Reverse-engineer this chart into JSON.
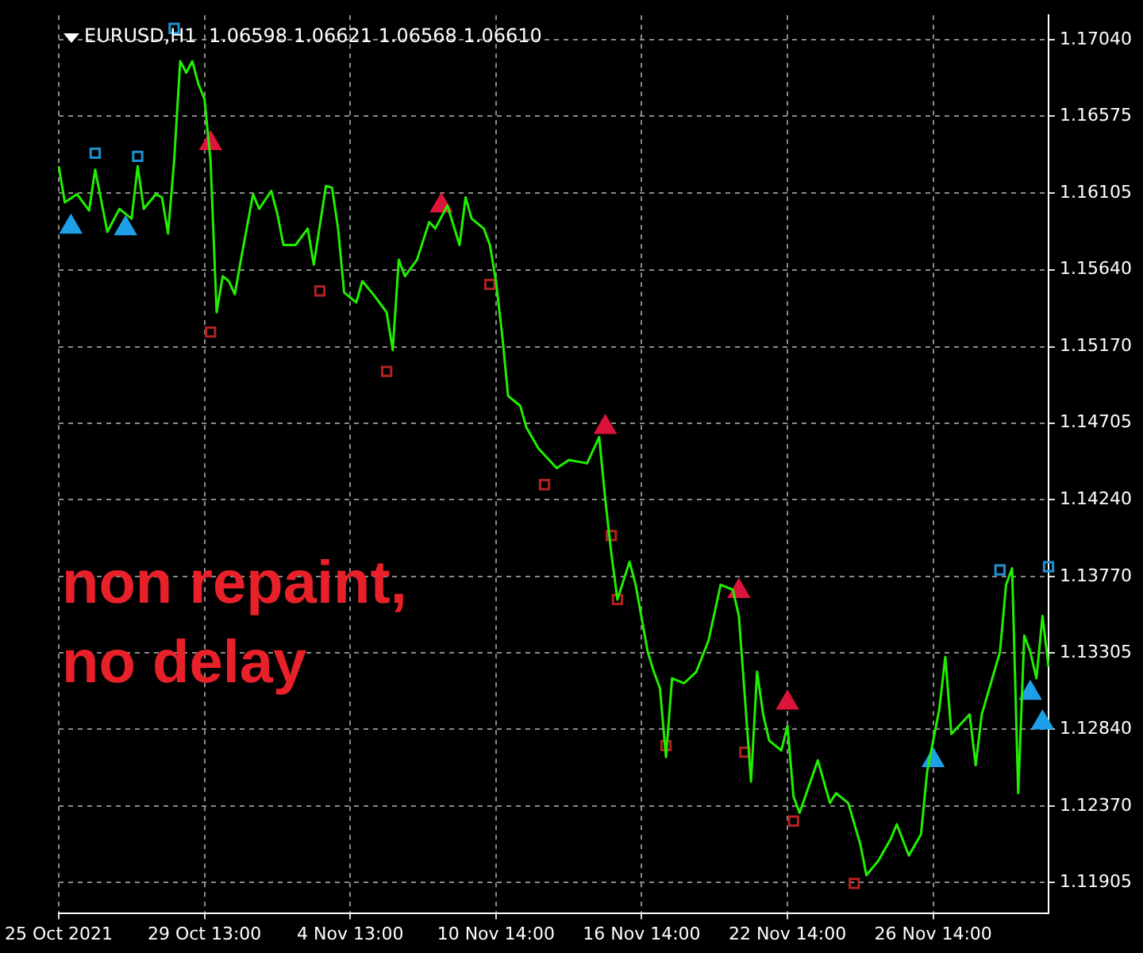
{
  "chart_data": {
    "type": "line",
    "title": "EURUSD,H1  1.06598 1.06621 1.06568 1.06610",
    "annotations": [
      "non repaint,",
      "no delay"
    ],
    "categories": [
      "25 Oct 2021",
      null,
      null,
      null,
      null,
      null,
      null,
      null,
      null,
      null,
      null,
      null,
      null,
      null,
      null,
      null,
      null,
      null,
      null,
      null,
      null,
      null,
      null,
      null,
      "29 Oct 13:00",
      null,
      null,
      null,
      null,
      null,
      null,
      null,
      null,
      null,
      null,
      null,
      null,
      null,
      null,
      null,
      null,
      null,
      null,
      null,
      null,
      null,
      null,
      null,
      "4 Nov 13:00",
      null,
      null,
      null,
      null,
      null,
      null,
      null,
      null,
      null,
      null,
      null,
      null,
      null,
      null,
      null,
      null,
      null,
      null,
      null,
      null,
      null,
      null,
      null,
      "10 Nov 14:00",
      null,
      null,
      null,
      null,
      null,
      null,
      null,
      null,
      null,
      null,
      null,
      null,
      null,
      null,
      null,
      null,
      null,
      null,
      null,
      null,
      null,
      null,
      null,
      "16 Nov 14:00",
      null,
      null,
      null,
      null,
      null,
      null,
      null,
      null,
      null,
      null,
      null,
      null,
      null,
      null,
      null,
      null,
      null,
      null,
      null,
      null,
      null,
      null,
      null,
      "22 Nov 14:00",
      null,
      null,
      null,
      null,
      null,
      null,
      null,
      null,
      null,
      null,
      null,
      null,
      null,
      null,
      null,
      null,
      null,
      null,
      null,
      null,
      null,
      null,
      null,
      "26 Nov 14:00",
      null,
      null,
      null,
      null,
      null,
      null,
      null,
      null,
      null,
      null,
      null,
      null,
      null,
      null,
      null,
      null,
      null,
      null,
      null
    ],
    "ylim": [
      1.1172,
      1.1719
    ],
    "yticks": [
      1.11905,
      {
        "value": 1.1237,
        "label": "1.12370"
      },
      {
        "value": 1.1284,
        "label": "1.12840"
      },
      1.13305,
      {
        "value": 1.1377,
        "label": "1.13770"
      },
      {
        "value": 1.1424,
        "label": "1.14240"
      },
      1.14705,
      {
        "value": 1.1517,
        "label": "1.15170"
      },
      {
        "value": 1.1564,
        "label": "1.15640"
      },
      1.16105,
      1.16575,
      {
        "value": 1.1704,
        "label": "1.17040"
      }
    ],
    "grid": true,
    "series": [
      {
        "type": "line",
        "color": "#22ee00",
        "marker": "none",
        "values": [
          1.1627,
          1.1605,
          null,
          1.161,
          null,
          1.16,
          1.1625,
          null,
          1.1587,
          null,
          1.1601,
          null,
          1.1595,
          1.1627,
          1.1601,
          null,
          1.161,
          1.1608,
          1.1586,
          1.163,
          1.1691,
          1.1684,
          1.1691,
          1.1677,
          1.1668,
          1.163,
          1.1538,
          1.156,
          1.1557,
          1.1549,
          1.157,
          null,
          1.161,
          1.1601,
          null,
          1.1612,
          1.1598,
          1.1579,
          null,
          1.1579,
          null,
          1.1589,
          1.1567,
          null,
          1.1615,
          1.1614,
          1.1589,
          1.155,
          null,
          1.1544,
          1.1557,
          null,
          1.1548,
          null,
          1.1538,
          1.1515,
          1.157,
          1.156,
          null,
          1.157,
          null,
          1.1593,
          1.1589,
          null,
          1.1603,
          null,
          1.1579,
          1.1608,
          1.1595,
          null,
          1.1589,
          1.1579,
          1.1557,
          1.1525,
          1.1487,
          null,
          1.1481,
          1.1468,
          null,
          1.1455,
          null,
          null,
          1.1443,
          null,
          1.1448,
          null,
          null,
          1.1446,
          null,
          1.1462,
          1.1424,
          1.1391,
          1.1363,
          null,
          1.1386,
          1.1372,
          null,
          1.1331,
          1.1319,
          1.1309,
          1.1267,
          1.1315,
          null,
          1.1312,
          null,
          1.1319,
          null,
          1.1338,
          null,
          1.1372,
          null,
          1.1369,
          1.1353,
          1.1303,
          1.1252,
          1.1319,
          1.1293,
          1.1277,
          null,
          1.1271,
          1.1286,
          1.1243,
          1.1233,
          null,
          null,
          1.1265,
          null,
          1.1239,
          1.1245,
          null,
          1.1239,
          null,
          1.1214,
          1.1195,
          null,
          1.1204,
          null,
          1.1217,
          1.1226,
          null,
          1.1207,
          null,
          1.122,
          1.1258,
          null,
          1.1296,
          1.1328,
          1.1281,
          null,
          null,
          1.1293,
          1.1262,
          1.1293,
          null,
          null,
          1.1331,
          1.1372,
          1.1382,
          1.1245,
          1.1341,
          1.1331,
          1.1315,
          1.1353,
          1.1322
        ]
      },
      {
        "type": "scatter",
        "color": "#1ea0e8",
        "marker": "triangle",
        "values": [
          null,
          null,
          1.159,
          null,
          null,
          null,
          null,
          null,
          null,
          null,
          null,
          1.1589,
          null,
          null,
          null,
          null,
          null,
          null,
          null,
          null,
          null,
          null,
          null,
          null,
          null,
          null,
          null,
          null,
          null,
          null,
          null,
          null,
          null,
          null,
          null,
          null,
          null,
          null,
          null,
          null,
          null,
          null,
          null,
          null,
          null,
          null,
          null,
          null,
          null,
          null,
          null,
          null,
          null,
          null,
          null,
          null,
          null,
          null,
          null,
          null,
          null,
          null,
          null,
          null,
          null,
          null,
          null,
          null,
          null,
          null,
          null,
          null,
          null,
          null,
          null,
          null,
          null,
          null,
          null,
          null,
          null,
          null,
          null,
          null,
          null,
          null,
          null,
          null,
          null,
          null,
          null,
          null,
          null,
          null,
          null,
          null,
          null,
          null,
          null,
          null,
          null,
          null,
          null,
          null,
          null,
          null,
          null,
          null,
          null,
          null,
          null,
          null,
          null,
          null,
          null,
          null,
          null,
          null,
          null,
          null,
          null,
          null,
          null,
          null,
          null,
          null,
          null,
          null,
          null,
          null,
          null,
          null,
          null,
          null,
          null,
          null,
          null,
          null,
          null,
          null,
          null,
          null,
          null,
          null,
          1.1265,
          null,
          null,
          null,
          null,
          null,
          null,
          null,
          null,
          null,
          null,
          null,
          null,
          null,
          null,
          null,
          1.1306,
          null,
          1.1288,
          null
        ]
      },
      {
        "type": "scatter",
        "color": "#dc143c",
        "marker": "triangle",
        "values": [
          null,
          null,
          null,
          null,
          null,
          null,
          null,
          null,
          null,
          null,
          null,
          null,
          null,
          null,
          null,
          null,
          null,
          null,
          null,
          null,
          null,
          null,
          null,
          null,
          null,
          1.1641,
          null,
          null,
          null,
          null,
          null,
          null,
          null,
          null,
          null,
          null,
          null,
          null,
          null,
          null,
          null,
          null,
          null,
          null,
          null,
          null,
          null,
          null,
          null,
          null,
          null,
          null,
          null,
          null,
          null,
          null,
          null,
          null,
          null,
          null,
          null,
          null,
          null,
          1.1603,
          null,
          null,
          null,
          null,
          null,
          null,
          null,
          null,
          null,
          null,
          null,
          null,
          null,
          null,
          null,
          null,
          null,
          null,
          null,
          null,
          null,
          null,
          null,
          null,
          null,
          null,
          1.1468,
          null,
          null,
          null,
          null,
          null,
          null,
          null,
          null,
          null,
          null,
          null,
          null,
          null,
          null,
          null,
          null,
          null,
          null,
          null,
          null,
          null,
          1.1368,
          null,
          null,
          null,
          null,
          null,
          null,
          null,
          1.13,
          null,
          null,
          null,
          null,
          null,
          null,
          null,
          null,
          null,
          null,
          null,
          null,
          null,
          null,
          null,
          null,
          null,
          null,
          null,
          null,
          null,
          null,
          null,
          null,
          null,
          null,
          null,
          null,
          null,
          null,
          null,
          null,
          null,
          null,
          null,
          null,
          null,
          null,
          null,
          null,
          null,
          null,
          null
        ]
      },
      {
        "type": "scatter",
        "color": "#1e90d0",
        "marker": "square",
        "values": [
          null,
          null,
          null,
          null,
          null,
          null,
          1.1635,
          null,
          null,
          null,
          null,
          null,
          null,
          1.1633,
          null,
          null,
          null,
          null,
          null,
          1.1711,
          null,
          null,
          null,
          null,
          null,
          null,
          null,
          null,
          null,
          null,
          null,
          null,
          null,
          null,
          null,
          null,
          null,
          null,
          null,
          null,
          null,
          null,
          null,
          null,
          null,
          null,
          null,
          null,
          null,
          null,
          null,
          null,
          null,
          null,
          null,
          null,
          null,
          null,
          null,
          null,
          null,
          null,
          null,
          null,
          null,
          null,
          null,
          null,
          null,
          null,
          null,
          null,
          null,
          null,
          null,
          null,
          null,
          null,
          null,
          null,
          null,
          null,
          null,
          null,
          null,
          null,
          null,
          null,
          null,
          null,
          null,
          null,
          null,
          null,
          null,
          null,
          null,
          null,
          null,
          null,
          null,
          null,
          null,
          null,
          null,
          null,
          null,
          null,
          null,
          null,
          null,
          null,
          null,
          null,
          null,
          null,
          null,
          null,
          null,
          null,
          null,
          null,
          null,
          null,
          null,
          null,
          null,
          null,
          null,
          null,
          null,
          null,
          null,
          null,
          null,
          null,
          null,
          null,
          null,
          null,
          null,
          null,
          null,
          null,
          null,
          null,
          null,
          null,
          null,
          null,
          null,
          null,
          null,
          null,
          null,
          1.1381,
          null,
          null,
          null,
          null,
          null,
          null,
          null,
          1.1383
        ]
      },
      {
        "type": "scatter",
        "color": "#b22222",
        "marker": "square",
        "values": [
          null,
          null,
          null,
          null,
          null,
          null,
          null,
          null,
          null,
          null,
          null,
          null,
          null,
          null,
          null,
          null,
          null,
          null,
          null,
          null,
          null,
          null,
          null,
          null,
          null,
          1.1526,
          null,
          null,
          null,
          null,
          null,
          null,
          null,
          null,
          null,
          null,
          null,
          null,
          null,
          null,
          null,
          null,
          null,
          1.1551,
          null,
          null,
          null,
          null,
          null,
          null,
          null,
          null,
          null,
          null,
          1.1502,
          null,
          null,
          null,
          null,
          null,
          null,
          null,
          null,
          null,
          null,
          null,
          null,
          null,
          null,
          null,
          null,
          1.1555,
          null,
          null,
          null,
          null,
          null,
          null,
          null,
          null,
          1.1433,
          null,
          null,
          null,
          null,
          null,
          null,
          null,
          null,
          null,
          null,
          1.1402,
          1.1363,
          null,
          null,
          null,
          null,
          null,
          null,
          null,
          1.1274,
          null,
          null,
          null,
          null,
          null,
          null,
          null,
          null,
          null,
          null,
          null,
          null,
          1.127,
          null,
          null,
          null,
          null,
          null,
          null,
          null,
          1.1228,
          null,
          null,
          null,
          null,
          null,
          null,
          null,
          null,
          null,
          1.119,
          null,
          null,
          null,
          null,
          null,
          null,
          null,
          null,
          null,
          null,
          null,
          null,
          null,
          null,
          null,
          null,
          null,
          null,
          null,
          null,
          null,
          null,
          null,
          null,
          null,
          null,
          null,
          null,
          null,
          null,
          null,
          null
        ]
      }
    ]
  }
}
